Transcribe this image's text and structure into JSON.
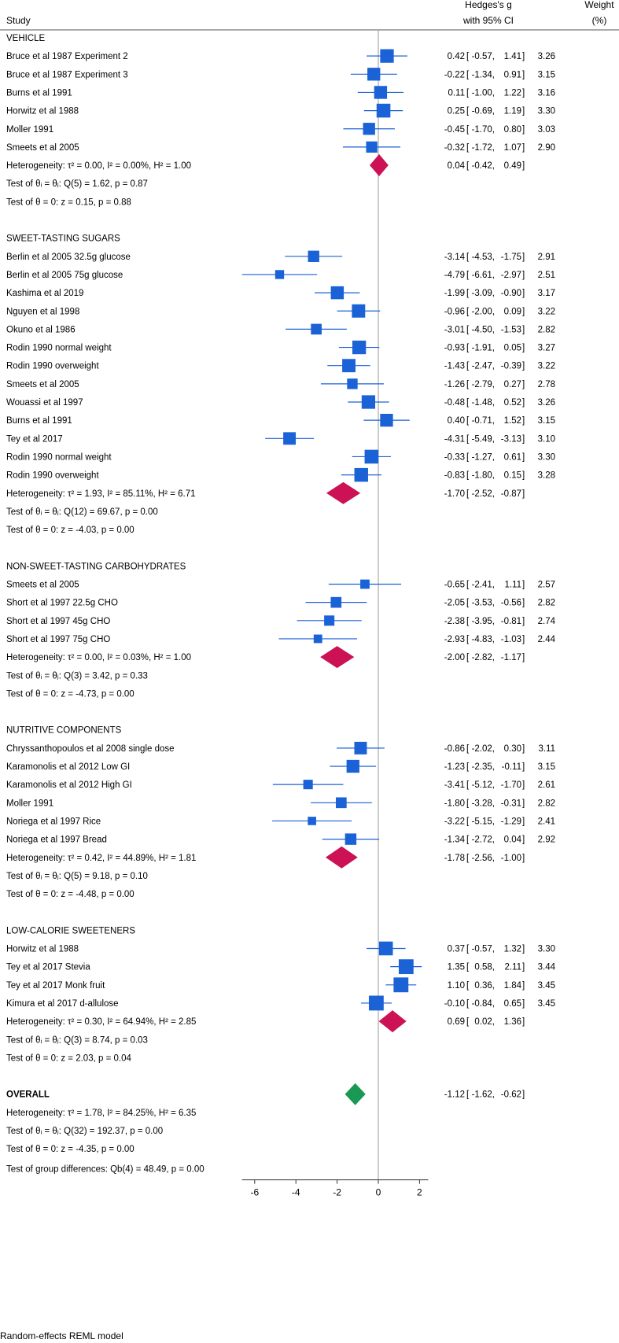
{
  "header": {
    "study": "Study",
    "effect_line1": "Hedges's g",
    "effect_line2": "with 95% CI",
    "weight_line1": "Weight",
    "weight_line2": "(%)"
  },
  "footer": "Random-effects REML model",
  "colors": {
    "study": "#1a62d6",
    "group_diamond": "#cc1155",
    "overall_diamond": "#1a9955",
    "ref_line": "#999999"
  },
  "chart_data": {
    "type": "forest",
    "xlim": [
      -7,
      2.5
    ],
    "xticks": [
      -6,
      -4,
      -2,
      0,
      2
    ],
    "groups": [
      {
        "name": "VEHICLE",
        "studies": [
          {
            "label": "Bruce et al 1987 Experiment 2",
            "g": 0.42,
            "lo": -0.57,
            "hi": 1.41,
            "w": 3.26
          },
          {
            "label": "Bruce et al 1987 Experiment 3",
            "g": -0.22,
            "lo": -1.34,
            "hi": 0.91,
            "w": 3.15
          },
          {
            "label": "Burns et al 1991",
            "g": 0.11,
            "lo": -1.0,
            "hi": 1.22,
            "w": 3.16
          },
          {
            "label": "Horwitz et al 1988",
            "g": 0.25,
            "lo": -0.69,
            "hi": 1.19,
            "w": 3.3
          },
          {
            "label": "Moller 1991",
            "g": -0.45,
            "lo": -1.7,
            "hi": 0.8,
            "w": 3.03
          },
          {
            "label": "Smeets et al 2005",
            "g": -0.32,
            "lo": -1.72,
            "hi": 1.07,
            "w": 2.9
          }
        ],
        "summary": {
          "label": "Heterogeneity: τ² = 0.00, I² = 0.00%, H² = 1.00",
          "g": 0.04,
          "lo": -0.42,
          "hi": 0.49
        },
        "tests": [
          "Test of θᵢ = θⱼ: Q(5) = 1.62, p = 0.87",
          "Test of θ = 0: z = 0.15, p = 0.88"
        ]
      },
      {
        "name": "SWEET-TASTING SUGARS",
        "studies": [
          {
            "label": "Berlin et al 2005 32.5g glucose",
            "g": -3.14,
            "lo": -4.53,
            "hi": -1.75,
            "w": 2.91
          },
          {
            "label": "Berlin et al 2005 75g glucose",
            "g": -4.79,
            "lo": -6.61,
            "hi": -2.97,
            "w": 2.51
          },
          {
            "label": "Kashima et al 2019",
            "g": -1.99,
            "lo": -3.09,
            "hi": -0.9,
            "w": 3.17
          },
          {
            "label": "Nguyen et al 1998",
            "g": -0.96,
            "lo": -2.0,
            "hi": 0.09,
            "w": 3.22
          },
          {
            "label": "Okuno et al 1986",
            "g": -3.01,
            "lo": -4.5,
            "hi": -1.53,
            "w": 2.82
          },
          {
            "label": "Rodin 1990 normal weight",
            "g": -0.93,
            "lo": -1.91,
            "hi": 0.05,
            "w": 3.27
          },
          {
            "label": "Rodin 1990 overweight",
            "g": -1.43,
            "lo": -2.47,
            "hi": -0.39,
            "w": 3.22
          },
          {
            "label": "Smeets et al 2005",
            "g": -1.26,
            "lo": -2.79,
            "hi": 0.27,
            "w": 2.78
          },
          {
            "label": "Wouassi et al 1997",
            "g": -0.48,
            "lo": -1.48,
            "hi": 0.52,
            "w": 3.26
          },
          {
            "label": "Burns et al 1991",
            "g": 0.4,
            "lo": -0.71,
            "hi": 1.52,
            "w": 3.15
          },
          {
            "label": "Tey et al 2017",
            "g": -4.31,
            "lo": -5.49,
            "hi": -3.13,
            "w": 3.1
          },
          {
            "label": "Rodin 1990 normal weight",
            "g": -0.33,
            "lo": -1.27,
            "hi": 0.61,
            "w": 3.3
          },
          {
            "label": "Rodin 1990 overweight",
            "g": -0.83,
            "lo": -1.8,
            "hi": 0.15,
            "w": 3.28
          }
        ],
        "summary": {
          "label": "Heterogeneity: τ² = 1.93, I² = 85.11%, H² = 6.71",
          "g": -1.7,
          "lo": -2.52,
          "hi": -0.87
        },
        "tests": [
          "Test of θᵢ = θⱼ: Q(12) = 69.67, p = 0.00",
          "Test of θ = 0: z = -4.03, p = 0.00"
        ]
      },
      {
        "name": "NON-SWEET-TASTING CARBOHYDRATES",
        "studies": [
          {
            "label": "Smeets et al 2005",
            "g": -0.65,
            "lo": -2.41,
            "hi": 1.11,
            "w": 2.57
          },
          {
            "label": "Short et al 1997 22.5g CHO",
            "g": -2.05,
            "lo": -3.53,
            "hi": -0.56,
            "w": 2.82
          },
          {
            "label": "Short et al 1997 45g CHO",
            "g": -2.38,
            "lo": -3.95,
            "hi": -0.81,
            "w": 2.74
          },
          {
            "label": "Short et al 1997 75g CHO",
            "g": -2.93,
            "lo": -4.83,
            "hi": -1.03,
            "w": 2.44
          }
        ],
        "summary": {
          "label": "Heterogeneity: τ² = 0.00, I² = 0.03%, H² = 1.00",
          "g": -2.0,
          "lo": -2.82,
          "hi": -1.17
        },
        "tests": [
          "Test of θᵢ = θⱼ: Q(3) = 3.42, p = 0.33",
          "Test of θ = 0: z = -4.73, p = 0.00"
        ]
      },
      {
        "name": "NUTRITIVE COMPONENTS",
        "studies": [
          {
            "label": "Chryssanthopoulos et al 2008 single dose",
            "g": -0.86,
            "lo": -2.02,
            "hi": 0.3,
            "w": 3.11
          },
          {
            "label": "Karamonolis et al 2012 Low GI",
            "g": -1.23,
            "lo": -2.35,
            "hi": -0.11,
            "w": 3.15
          },
          {
            "label": "Karamonolis et al 2012 High GI",
            "g": -3.41,
            "lo": -5.12,
            "hi": -1.7,
            "w": 2.61
          },
          {
            "label": "Moller 1991",
            "g": -1.8,
            "lo": -3.28,
            "hi": -0.31,
            "w": 2.82
          },
          {
            "label": "Noriega et al 1997 Rice",
            "g": -3.22,
            "lo": -5.15,
            "hi": -1.29,
            "w": 2.41
          },
          {
            "label": "Noriega et al 1997 Bread",
            "g": -1.34,
            "lo": -2.72,
            "hi": 0.04,
            "w": 2.92
          }
        ],
        "summary": {
          "label": "Heterogeneity: τ² = 0.42, I² = 44.89%, H² = 1.81",
          "g": -1.78,
          "lo": -2.56,
          "hi": -1.0
        },
        "tests": [
          "Test of θᵢ = θⱼ: Q(5) = 9.18, p = 0.10",
          "Test of θ = 0: z = -4.48, p = 0.00"
        ]
      },
      {
        "name": "LOW-CALORIE SWEETENERS",
        "studies": [
          {
            "label": "Horwitz et al 1988",
            "g": 0.37,
            "lo": -0.57,
            "hi": 1.32,
            "w": 3.3
          },
          {
            "label": "Tey et al 2017 Stevia",
            "g": 1.35,
            "lo": 0.58,
            "hi": 2.11,
            "w": 3.44
          },
          {
            "label": "Tey et al 2017 Monk fruit",
            "g": 1.1,
            "lo": 0.36,
            "hi": 1.84,
            "w": 3.45
          },
          {
            "label": "Kimura et al 2017 d-allulose",
            "g": -0.1,
            "lo": -0.84,
            "hi": 0.65,
            "w": 3.45
          }
        ],
        "summary": {
          "label": "Heterogeneity: τ² = 0.30, I² = 64.94%, H² = 2.85",
          "g": 0.69,
          "lo": 0.02,
          "hi": 1.36
        },
        "tests": [
          "Test of θᵢ = θⱼ: Q(3) = 8.74, p = 0.03",
          "Test of θ = 0: z = 2.03, p = 0.04"
        ]
      }
    ],
    "overall": {
      "name": "OVERALL",
      "g": -1.12,
      "lo": -1.62,
      "hi": -0.62,
      "lines": [
        "Heterogeneity: τ² = 1.78, I² = 84.25%, H² = 6.35",
        "Test of θᵢ = θⱼ: Q(32) = 192.37, p = 0.00",
        "Test of θ = 0: z = -4.35, p = 0.00"
      ]
    },
    "group_test": "Test of group differences: Qb(4) = 48.49, p = 0.00"
  }
}
